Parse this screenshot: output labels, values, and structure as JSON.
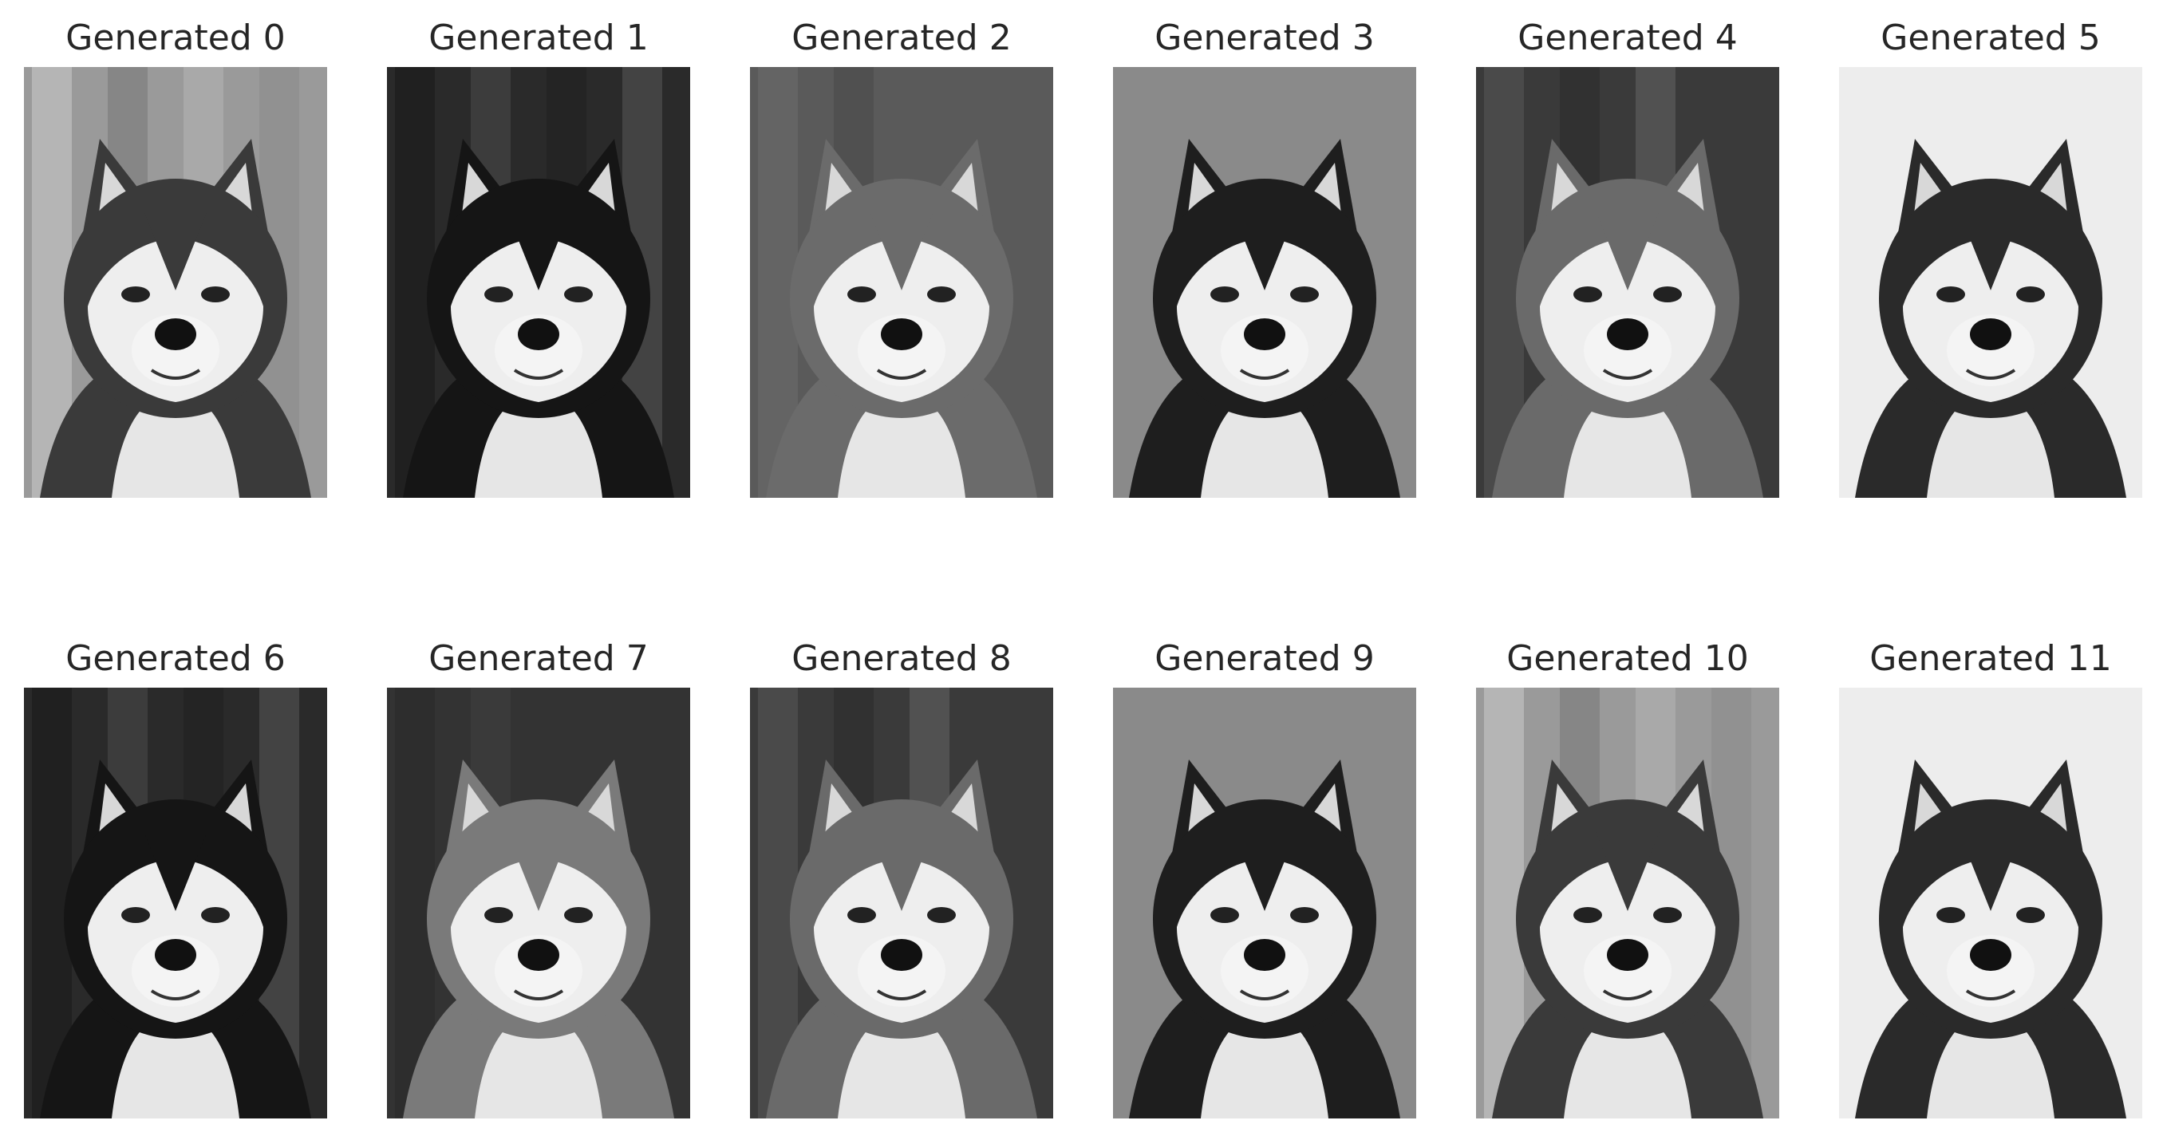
{
  "figure": {
    "panels": [
      {
        "title": "Generated 0",
        "image": {
          "subject": "husky-face",
          "background": "light-striped",
          "tone": "grayscale"
        }
      },
      {
        "title": "Generated 1",
        "image": {
          "subject": "husky-face",
          "background": "dark-foliage",
          "tone": "grayscale"
        }
      },
      {
        "title": "Generated 2",
        "image": {
          "subject": "husky-face",
          "background": "medium-gray",
          "tone": "grayscale"
        }
      },
      {
        "title": "Generated 3",
        "image": {
          "subject": "husky-face",
          "background": "flat-gray",
          "tone": "grayscale"
        }
      },
      {
        "title": "Generated 4",
        "image": {
          "subject": "husky-face",
          "background": "dark-blur",
          "tone": "grayscale"
        }
      },
      {
        "title": "Generated 5",
        "image": {
          "subject": "husky-face",
          "background": "white",
          "tone": "grayscale"
        }
      },
      {
        "title": "Generated 6",
        "image": {
          "subject": "husky-face",
          "background": "dark-foliage",
          "tone": "grayscale"
        }
      },
      {
        "title": "Generated 7",
        "image": {
          "subject": "husky-face",
          "background": "dark-gray",
          "tone": "grayscale"
        }
      },
      {
        "title": "Generated 8",
        "image": {
          "subject": "husky-face",
          "background": "dark-blur",
          "tone": "grayscale"
        }
      },
      {
        "title": "Generated 9",
        "image": {
          "subject": "husky-face",
          "background": "flat-gray",
          "tone": "grayscale"
        }
      },
      {
        "title": "Generated 10",
        "image": {
          "subject": "husky-face",
          "background": "light-striped",
          "tone": "grayscale"
        }
      },
      {
        "title": "Generated 11",
        "image": {
          "subject": "husky-face",
          "background": "white",
          "tone": "grayscale"
        }
      }
    ]
  }
}
